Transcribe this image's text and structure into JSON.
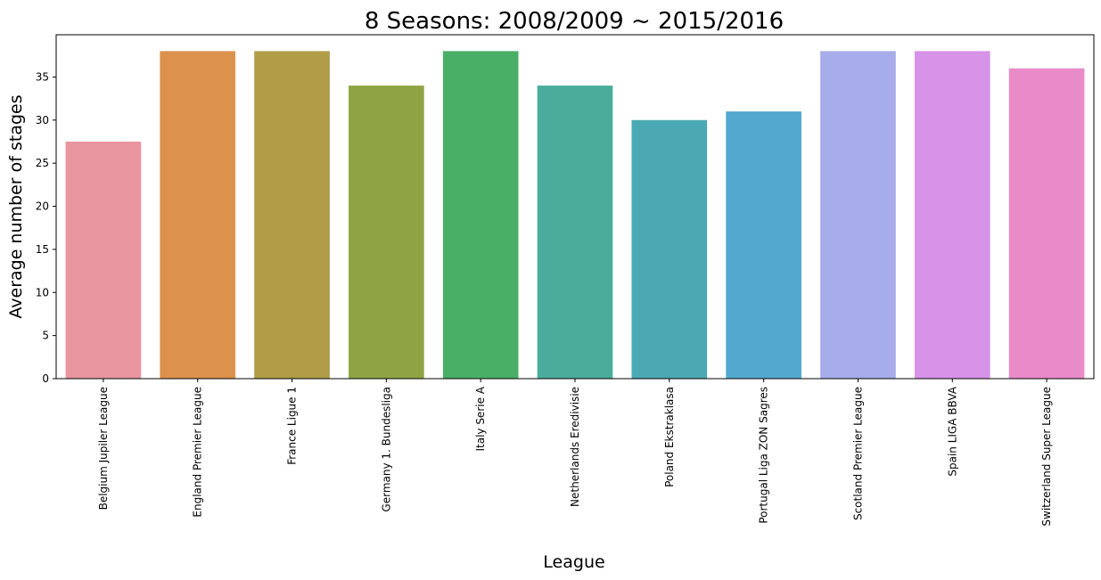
{
  "chart_data": {
    "type": "bar",
    "title": "8 Seasons: 2008/2009 ~ 2015/2016",
    "xlabel": "League",
    "ylabel": "Average number of stages",
    "categories": [
      "Belgium Jupiler League",
      "England Premier League",
      "France Ligue 1",
      "Germany 1. Bundesliga",
      "Italy Serie A",
      "Netherlands Eredivisie",
      "Poland Ekstraklasa",
      "Portugal Liga ZON Sagres",
      "Scotland Premier League",
      "Spain LIGA BBVA",
      "Switzerland Super League"
    ],
    "values": [
      27.5,
      38,
      38,
      34,
      38,
      34,
      30,
      31,
      38,
      38,
      36
    ],
    "colors": [
      "#e8959f",
      "#dc914d",
      "#b19d47",
      "#8ea444",
      "#4aaf66",
      "#4aad9b",
      "#4ba9b3",
      "#53a8d0",
      "#a7acea",
      "#d693e7",
      "#e88bc8"
    ],
    "ylim": [
      0,
      39.9
    ],
    "yticks": [
      0,
      5,
      10,
      15,
      20,
      25,
      30,
      35
    ],
    "grid": false,
    "legend": "none"
  }
}
